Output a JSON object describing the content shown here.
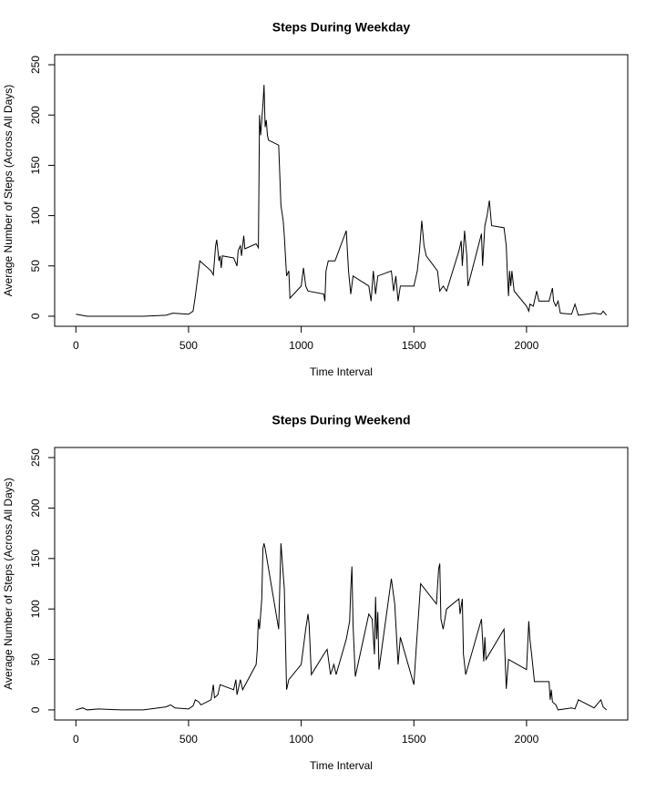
{
  "chart_data": [
    {
      "type": "line",
      "title": "Steps During Weekday",
      "xlabel": "Time Interval",
      "ylabel": "Average Number of Steps (Across All Days)",
      "color": "#000000",
      "xlim": [
        -94.2,
        2449.2
      ],
      "xticks": [
        0,
        500,
        1000,
        1500,
        2000
      ],
      "ylim": [
        -10,
        260
      ],
      "yticks": [
        0,
        50,
        100,
        150,
        200,
        250
      ],
      "x": [
        0,
        50,
        100,
        200,
        300,
        400,
        430,
        500,
        520,
        530,
        550,
        600,
        610,
        620,
        625,
        635,
        640,
        645,
        650,
        700,
        715,
        720,
        730,
        735,
        745,
        750,
        800,
        810,
        815,
        820,
        830,
        835,
        840,
        845,
        850,
        855,
        900,
        910,
        920,
        925,
        935,
        945,
        950,
        1000,
        1010,
        1020,
        1030,
        1100,
        1105,
        1110,
        1120,
        1150,
        1200,
        1210,
        1220,
        1230,
        1300,
        1310,
        1320,
        1330,
        1340,
        1400,
        1410,
        1420,
        1430,
        1440,
        1500,
        1515,
        1525,
        1535,
        1545,
        1555,
        1605,
        1615,
        1630,
        1645,
        1700,
        1710,
        1715,
        1725,
        1735,
        1740,
        1800,
        1805,
        1815,
        1825,
        1835,
        1845,
        1900,
        1910,
        1915,
        1920,
        1925,
        1930,
        1935,
        1945,
        2000,
        2010,
        2015,
        2030,
        2045,
        2055,
        2100,
        2115,
        2120,
        2130,
        2140,
        2150,
        2200,
        2215,
        2230,
        2300,
        2330,
        2340,
        2355
      ],
      "values": [
        2,
        0,
        0,
        0,
        0,
        1,
        3,
        2,
        5,
        20,
        55,
        45,
        41,
        70,
        76,
        55,
        60,
        48,
        60,
        58,
        50,
        65,
        70,
        60,
        80,
        67,
        72,
        68,
        200,
        180,
        210,
        230,
        188,
        195,
        180,
        175,
        170,
        110,
        95,
        80,
        40,
        45,
        18,
        30,
        48,
        30,
        25,
        22,
        15,
        45,
        55,
        55,
        85,
        45,
        22,
        40,
        30,
        15,
        45,
        22,
        40,
        45,
        25,
        40,
        15,
        30,
        30,
        45,
        65,
        95,
        70,
        60,
        45,
        25,
        30,
        25,
        65,
        75,
        50,
        85,
        60,
        30,
        82,
        50,
        90,
        100,
        115,
        90,
        88,
        70,
        42,
        20,
        45,
        30,
        45,
        25,
        10,
        5,
        12,
        10,
        25,
        15,
        15,
        28,
        15,
        10,
        15,
        3,
        2,
        12,
        1,
        3,
        2,
        5,
        1
      ]
    },
    {
      "type": "line",
      "title": "Steps During Weekend",
      "xlabel": "Time Interval",
      "ylabel": "Average Number of Steps (Across All Days)",
      "color": "#000000",
      "xlim": [
        -94.2,
        2449.2
      ],
      "xticks": [
        0,
        500,
        1000,
        1500,
        2000
      ],
      "ylim": [
        -10,
        260
      ],
      "yticks": [
        0,
        50,
        100,
        150,
        200,
        250
      ],
      "x": [
        0,
        30,
        50,
        100,
        200,
        300,
        400,
        420,
        440,
        500,
        520,
        530,
        545,
        555,
        600,
        610,
        615,
        630,
        640,
        700,
        710,
        715,
        730,
        740,
        800,
        805,
        810,
        815,
        825,
        830,
        835,
        840,
        900,
        910,
        915,
        925,
        935,
        945,
        1000,
        1020,
        1030,
        1035,
        1045,
        1100,
        1115,
        1130,
        1145,
        1155,
        1200,
        1215,
        1220,
        1225,
        1230,
        1240,
        1300,
        1315,
        1325,
        1330,
        1335,
        1340,
        1345,
        1400,
        1415,
        1430,
        1440,
        1500,
        1510,
        1530,
        1600,
        1610,
        1615,
        1620,
        1630,
        1645,
        1700,
        1705,
        1715,
        1720,
        1730,
        1800,
        1810,
        1815,
        1820,
        1900,
        1910,
        1920,
        2000,
        2010,
        2015,
        2025,
        2035,
        2100,
        2105,
        2110,
        2115,
        2130,
        2140,
        2200,
        2215,
        2230,
        2300,
        2330,
        2340,
        2355
      ],
      "values": [
        0,
        2,
        0,
        1,
        0,
        0,
        3,
        5,
        2,
        1,
        4,
        10,
        8,
        5,
        10,
        25,
        12,
        15,
        25,
        20,
        30,
        15,
        30,
        20,
        45,
        60,
        90,
        80,
        110,
        160,
        165,
        160,
        80,
        165,
        150,
        120,
        20,
        30,
        45,
        80,
        95,
        85,
        35,
        55,
        60,
        35,
        45,
        35,
        70,
        88,
        120,
        142,
        85,
        33,
        95,
        90,
        55,
        112,
        70,
        97,
        40,
        130,
        105,
        45,
        72,
        25,
        60,
        125,
        105,
        140,
        145,
        90,
        80,
        100,
        110,
        95,
        110,
        55,
        35,
        90,
        48,
        72,
        50,
        80,
        21,
        50,
        40,
        88,
        70,
        50,
        28,
        28,
        10,
        20,
        8,
        5,
        0,
        2,
        1,
        10,
        2,
        10,
        3,
        0
      ]
    }
  ]
}
